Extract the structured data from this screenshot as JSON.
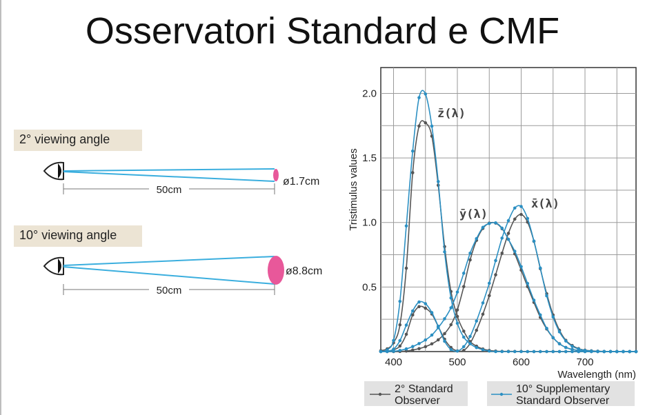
{
  "page": {
    "title": "Osservatori Standard e CMF"
  },
  "diagram": {
    "views": [
      {
        "angle_label": "2° viewing angle",
        "distance": "50cm",
        "diameter": "ø1.7cm"
      },
      {
        "angle_label": "10° viewing angle",
        "distance": "50cm",
        "diameter": "ø8.8cm"
      }
    ],
    "colors": {
      "ray": "#3aaede",
      "target": "#e8589a",
      "label_bg": "#ece4d4"
    }
  },
  "chart_data": {
    "type": "line",
    "title": "",
    "xlabel": "Wavelength (nm)",
    "ylabel": "Tristimulus values",
    "xlim": [
      380,
      780
    ],
    "ylim": [
      0,
      2.2
    ],
    "xticks": [
      "400",
      "500",
      "600",
      "700"
    ],
    "yticks": [
      "0.5",
      "1.0",
      "1.5",
      "2.0"
    ],
    "grid": true,
    "curve_labels": [
      "z̄(λ)",
      "ȳ(λ)",
      "x̄(λ)"
    ],
    "legend": [
      {
        "label_line1": "2° Standard",
        "label_line2": "Observer",
        "color": "#555555"
      },
      {
        "label_line1": "10° Supplementary",
        "label_line2": "Standard Observer",
        "color": "#2b8fc2"
      }
    ],
    "x": [
      380,
      390,
      400,
      410,
      420,
      430,
      440,
      450,
      460,
      470,
      480,
      490,
      500,
      510,
      520,
      530,
      540,
      550,
      560,
      570,
      580,
      590,
      600,
      610,
      620,
      630,
      640,
      650,
      660,
      670,
      680,
      690,
      700,
      710,
      720,
      730,
      740,
      750,
      760,
      770,
      780
    ],
    "series": [
      {
        "observer": "2°",
        "color": "#555555",
        "x_bar": [
          0.001,
          0.004,
          0.014,
          0.043,
          0.134,
          0.284,
          0.348,
          0.336,
          0.291,
          0.195,
          0.096,
          0.032,
          0.005,
          0.009,
          0.063,
          0.165,
          0.29,
          0.433,
          0.595,
          0.762,
          0.916,
          1.026,
          1.062,
          1.003,
          0.854,
          0.642,
          0.448,
          0.284,
          0.165,
          0.087,
          0.047,
          0.023,
          0.011,
          0.006,
          0.003,
          0.001,
          0.001,
          0.0005,
          0.0002,
          0.0001,
          0.0001
        ],
        "y_bar": [
          0.0,
          0.0,
          0.0,
          0.001,
          0.004,
          0.012,
          0.023,
          0.038,
          0.06,
          0.091,
          0.139,
          0.208,
          0.323,
          0.503,
          0.71,
          0.862,
          0.954,
          0.995,
          0.995,
          0.952,
          0.87,
          0.757,
          0.631,
          0.503,
          0.381,
          0.265,
          0.175,
          0.107,
          0.061,
          0.032,
          0.017,
          0.008,
          0.004,
          0.002,
          0.001,
          0.001,
          0.0003,
          0.0002,
          0.0001,
          0.0,
          0.0
        ],
        "z_bar": [
          0.007,
          0.021,
          0.068,
          0.207,
          0.646,
          1.386,
          1.747,
          1.772,
          1.669,
          1.288,
          0.813,
          0.465,
          0.272,
          0.158,
          0.078,
          0.042,
          0.02,
          0.009,
          0.004,
          0.002,
          0.002,
          0.001,
          0.001,
          0.0,
          0.0,
          0.0,
          0.0,
          0.0,
          0.0,
          0.0,
          0.0,
          0.0,
          0.0,
          0.0,
          0.0,
          0.0,
          0.0,
          0.0,
          0.0,
          0.0,
          0.0
        ]
      },
      {
        "observer": "10°",
        "color": "#2b8fc2",
        "x_bar": [
          0.0,
          0.003,
          0.019,
          0.085,
          0.205,
          0.315,
          0.384,
          0.371,
          0.302,
          0.196,
          0.08,
          0.016,
          0.004,
          0.038,
          0.117,
          0.237,
          0.377,
          0.529,
          0.705,
          0.879,
          1.014,
          1.112,
          1.124,
          1.031,
          0.856,
          0.647,
          0.432,
          0.268,
          0.153,
          0.082,
          0.041,
          0.02,
          0.009,
          0.004,
          0.002,
          0.001,
          0.0005,
          0.0002,
          0.0001,
          0.0,
          0.0
        ],
        "y_bar": [
          0.0,
          0.0,
          0.002,
          0.009,
          0.021,
          0.039,
          0.062,
          0.09,
          0.128,
          0.185,
          0.254,
          0.339,
          0.461,
          0.607,
          0.762,
          0.875,
          0.962,
          0.992,
          0.997,
          0.956,
          0.869,
          0.777,
          0.658,
          0.528,
          0.398,
          0.284,
          0.18,
          0.108,
          0.06,
          0.032,
          0.016,
          0.008,
          0.004,
          0.002,
          0.001,
          0.0,
          0.0,
          0.0,
          0.0,
          0.0,
          0.0
        ],
        "z_bar": [
          0.001,
          0.013,
          0.086,
          0.389,
          0.973,
          1.553,
          1.967,
          1.995,
          1.746,
          1.317,
          0.772,
          0.415,
          0.219,
          0.112,
          0.061,
          0.031,
          0.014,
          0.004,
          0.0,
          0.0,
          0.0,
          0.0,
          0.0,
          0.0,
          0.0,
          0.0,
          0.0,
          0.0,
          0.0,
          0.0,
          0.0,
          0.0,
          0.0,
          0.0,
          0.0,
          0.0,
          0.0,
          0.0,
          0.0,
          0.0,
          0.0
        ]
      }
    ]
  }
}
